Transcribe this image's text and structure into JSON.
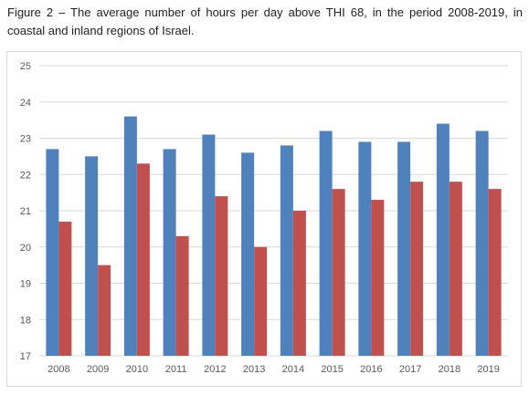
{
  "caption": "Figure 2 – The average number of hours per day above THI 68, in the period 2008-2019, in coastal and inland regions of Israel.",
  "colors": {
    "series_1": "#4f81bd",
    "series_2": "#c0504d",
    "grid": "#d9d9d9",
    "tick_text": "#595959"
  },
  "chart_data": {
    "type": "bar",
    "title": "",
    "xlabel": "",
    "ylabel": "",
    "categories": [
      "2008",
      "2009",
      "2010",
      "2011",
      "2012",
      "2013",
      "2014",
      "2015",
      "2016",
      "2017",
      "2018",
      "2019"
    ],
    "series": [
      {
        "values": [
          22.7,
          22.5,
          23.6,
          22.7,
          23.1,
          22.6,
          22.8,
          23.2,
          22.9,
          22.9,
          23.4,
          23.2
        ]
      },
      {
        "values": [
          20.7,
          19.5,
          22.3,
          20.3,
          21.4,
          20.0,
          21.0,
          21.6,
          21.3,
          21.8,
          21.8,
          21.6
        ]
      }
    ],
    "ylim": [
      17,
      25
    ],
    "yticks": [
      "17",
      "18",
      "19",
      "20",
      "21",
      "22",
      "23",
      "24",
      "25"
    ],
    "grid": true,
    "legend": "none"
  }
}
